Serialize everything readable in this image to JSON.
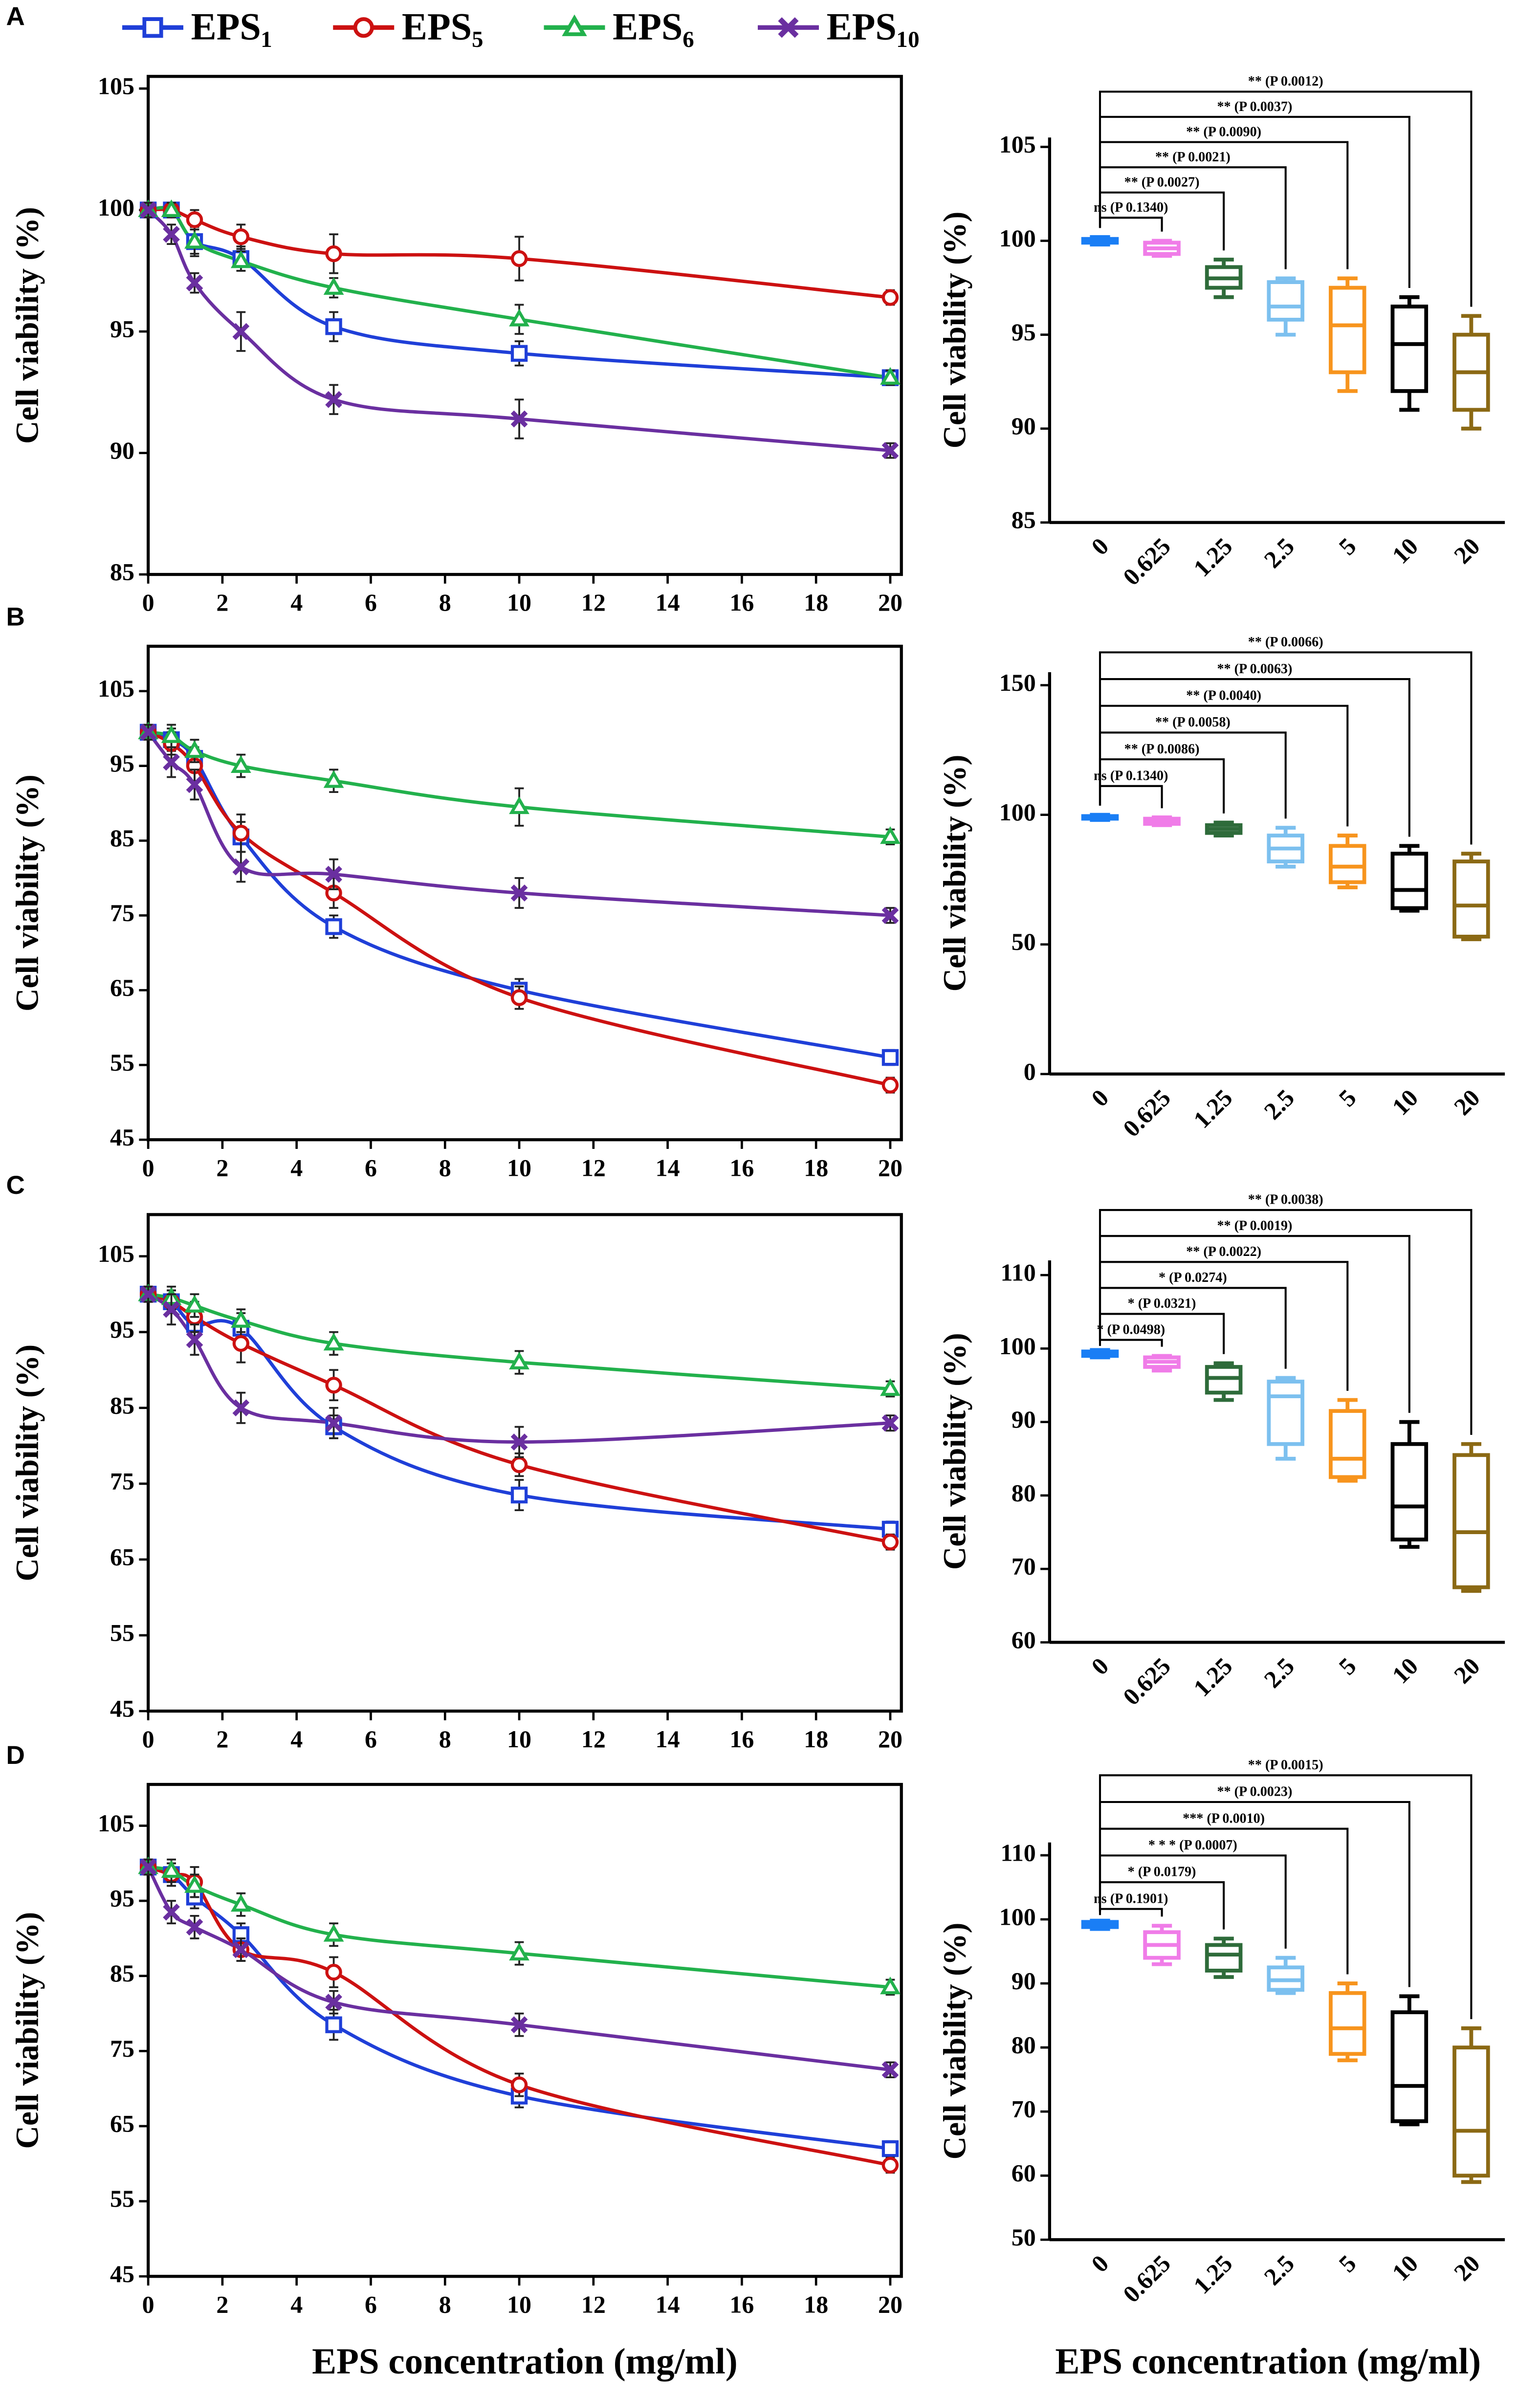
{
  "chart_data": [
    {
      "type": "line",
      "panel": "A",
      "ylabel": "Cell viability (%)",
      "x": [
        0,
        0.625,
        1.25,
        2.5,
        5,
        10,
        20
      ],
      "xlim": [
        0,
        20.3
      ],
      "xticks": [
        0,
        2,
        4,
        6,
        8,
        10,
        12,
        14,
        16,
        18,
        20
      ],
      "ylim": [
        85,
        105.5
      ],
      "yticks": [
        85,
        90,
        95,
        100,
        105
      ],
      "series": [
        {
          "name": "EPS₁",
          "color": "#1f3fd8",
          "marker": "square",
          "values": [
            100,
            100,
            98.7,
            98,
            95.2,
            94.1,
            93.1
          ],
          "errors": [
            0.3,
            0.3,
            0.6,
            0.5,
            0.6,
            0.5,
            0.3
          ]
        },
        {
          "name": "EPS₅",
          "color": "#cc1111",
          "marker": "circle",
          "values": [
            100,
            100,
            99.6,
            98.9,
            98.2,
            98,
            96.4
          ],
          "errors": [
            0.3,
            0.3,
            0.4,
            0.5,
            0.8,
            0.9,
            0.3
          ]
        },
        {
          "name": "EPS₆",
          "color": "#22b14c",
          "marker": "triangle",
          "values": [
            100,
            100,
            98.7,
            97.9,
            96.8,
            95.5,
            93.1
          ],
          "errors": [
            0.3,
            0.3,
            0.5,
            0.4,
            0.4,
            0.6,
            0.3
          ]
        },
        {
          "name": "EPS₁₀",
          "color": "#6a2fa0",
          "marker": "x",
          "values": [
            100,
            99,
            97,
            95,
            92.2,
            91.4,
            90.1
          ],
          "errors": [
            0.3,
            0.4,
            0.4,
            0.8,
            0.6,
            0.8,
            0.3
          ]
        }
      ]
    },
    {
      "type": "line",
      "panel": "B",
      "ylabel": "Cell viability (%)",
      "x": [
        0,
        0.625,
        1.25,
        2.5,
        5,
        10,
        20
      ],
      "xlim": [
        0,
        20.3
      ],
      "xticks": [
        0,
        2,
        4,
        6,
        8,
        10,
        12,
        14,
        16,
        18,
        20
      ],
      "ylim": [
        45,
        111
      ],
      "yticks": [
        45,
        55,
        65,
        75,
        85,
        95,
        105
      ],
      "series": [
        {
          "color": "#1f3fd8",
          "marker": "square",
          "values": [
            99.5,
            98.5,
            96,
            85.5,
            73.5,
            65,
            56
          ],
          "errors": [
            1,
            1.5,
            1.5,
            2,
            1.5,
            1.5,
            1
          ]
        },
        {
          "color": "#cc1111",
          "marker": "circle",
          "values": [
            99.5,
            98,
            95,
            86,
            78,
            64,
            52.3
          ],
          "errors": [
            1,
            1.5,
            2,
            2.5,
            2,
            1.5,
            1
          ]
        },
        {
          "color": "#22b14c",
          "marker": "triangle",
          "values": [
            99.5,
            99,
            97,
            95,
            93,
            89.5,
            85.5
          ],
          "errors": [
            1,
            1.5,
            1.5,
            1.5,
            1.5,
            2.5,
            1
          ]
        },
        {
          "color": "#6a2fa0",
          "marker": "x",
          "values": [
            99.5,
            95.5,
            92.5,
            81.5,
            80.5,
            78,
            75
          ],
          "errors": [
            1,
            2,
            2,
            2,
            2,
            2,
            1
          ]
        }
      ]
    },
    {
      "type": "line",
      "panel": "C",
      "ylabel": "Cell viability (%)",
      "x": [
        0,
        0.625,
        1.25,
        2.5,
        5,
        10,
        20
      ],
      "xlim": [
        0,
        20.3
      ],
      "xticks": [
        0,
        2,
        4,
        6,
        8,
        10,
        12,
        14,
        16,
        18,
        20
      ],
      "ylim": [
        45,
        110.5
      ],
      "yticks": [
        45,
        55,
        65,
        75,
        85,
        95,
        105
      ],
      "series": [
        {
          "color": "#1f3fd8",
          "marker": "square",
          "values": [
            100,
            99,
            96,
            95.5,
            82.5,
            73.5,
            69
          ],
          "errors": [
            1,
            1.5,
            1.5,
            2,
            1.5,
            2,
            1
          ]
        },
        {
          "color": "#cc1111",
          "marker": "circle",
          "values": [
            100,
            99,
            97,
            93.5,
            88,
            77.5,
            67.3
          ],
          "errors": [
            1,
            1.5,
            2,
            2.5,
            2,
            1.5,
            1
          ]
        },
        {
          "color": "#22b14c",
          "marker": "triangle",
          "values": [
            100,
            99.5,
            98.5,
            96.5,
            93.5,
            91,
            87.5
          ],
          "errors": [
            1,
            1.5,
            1.5,
            1.5,
            1.5,
            1.5,
            1
          ]
        },
        {
          "color": "#6a2fa0",
          "marker": "x",
          "values": [
            100,
            98,
            94,
            85,
            83,
            80.5,
            83
          ],
          "errors": [
            1,
            2,
            2,
            2,
            2,
            2,
            1
          ]
        }
      ]
    },
    {
      "type": "line",
      "panel": "D",
      "ylabel": "Cell viability (%)",
      "xlabel": "EPS concentration (mg/ml)",
      "x": [
        0,
        0.625,
        1.25,
        2.5,
        5,
        10,
        20
      ],
      "xlim": [
        0,
        20.3
      ],
      "xticks": [
        0,
        2,
        4,
        6,
        8,
        10,
        12,
        14,
        16,
        18,
        20
      ],
      "ylim": [
        45,
        110.5
      ],
      "yticks": [
        45,
        55,
        65,
        75,
        85,
        95,
        105
      ],
      "series": [
        {
          "color": "#1f3fd8",
          "marker": "square",
          "values": [
            99.5,
            98.5,
            95.5,
            90.5,
            78.5,
            69,
            62
          ],
          "errors": [
            1,
            1.5,
            1.5,
            1.5,
            2,
            1.5,
            1
          ]
        },
        {
          "color": "#cc1111",
          "marker": "circle",
          "values": [
            99.5,
            98.5,
            97.5,
            88.5,
            85.5,
            70.5,
            59.8
          ],
          "errors": [
            1,
            1.5,
            2,
            1.5,
            2,
            1.5,
            1
          ]
        },
        {
          "color": "#22b14c",
          "marker": "triangle",
          "values": [
            99.5,
            99,
            97,
            94.5,
            90.5,
            88,
            83.5
          ],
          "errors": [
            1,
            1.5,
            1.5,
            1.5,
            1.5,
            1.5,
            1
          ]
        },
        {
          "color": "#6a2fa0",
          "marker": "x",
          "values": [
            99.5,
            93.5,
            91.5,
            88.5,
            81.5,
            78.5,
            72.5
          ],
          "errors": [
            1,
            1.5,
            1.5,
            1.5,
            1.5,
            1.5,
            1
          ]
        }
      ]
    },
    {
      "type": "box",
      "ylabel": "Cell viability (%)",
      "categories": [
        "0",
        "0.625",
        "1.25",
        "2.5",
        "5",
        "10",
        "20"
      ],
      "colors": [
        "#1a7ef5",
        "#f07ce8",
        "#2e6b3a",
        "#7cc0ef",
        "#f7941d",
        "#000000",
        "#8b6914"
      ],
      "ylim": [
        85,
        105.5
      ],
      "yticks": [
        85,
        90,
        95,
        100,
        105
      ],
      "boxes": [
        [
          99.8,
          99.9,
          100,
          100.1,
          100.2
        ],
        [
          99.2,
          99.3,
          99.6,
          99.9,
          100
        ],
        [
          97,
          97.5,
          98,
          98.6,
          99
        ],
        [
          95,
          95.8,
          96.5,
          97.8,
          98
        ],
        [
          92,
          93,
          95.5,
          97.5,
          98
        ],
        [
          91,
          92,
          94.5,
          96.5,
          97
        ],
        [
          90,
          91,
          93,
          95,
          96
        ]
      ],
      "annotations": [
        "ns (P 0.1340)",
        "** (P 0.0027)",
        "** (P 0.0021)",
        "** (P 0.0090)",
        "** (P 0.0037)",
        "** (P 0.0012)"
      ]
    },
    {
      "type": "box",
      "ylabel": "Cell viability (%)",
      "categories": [
        "0",
        "0.625",
        "1.25",
        "2.5",
        "5",
        "10",
        "20"
      ],
      "colors": [
        "#1a7ef5",
        "#f07ce8",
        "#2e6b3a",
        "#7cc0ef",
        "#f7941d",
        "#000000",
        "#8b6914"
      ],
      "ylim": [
        0,
        155
      ],
      "yticks": [
        0,
        50,
        100,
        150
      ],
      "boxes": [
        [
          98,
          98.5,
          99,
          99.5,
          100
        ],
        [
          96,
          96.5,
          97.5,
          98.5,
          99
        ],
        [
          92,
          93,
          94.5,
          96,
          97
        ],
        [
          80,
          82,
          87,
          92,
          95
        ],
        [
          72,
          74,
          80,
          88,
          92
        ],
        [
          63,
          64,
          71,
          85,
          88
        ],
        [
          52,
          53,
          65,
          82,
          85
        ]
      ],
      "annotations": [
        "ns (P 0.1340)",
        "** (P 0.0086)",
        "** (P 0.0058)",
        "** (P 0.0040)",
        "** (P 0.0063)",
        "** (P 0.0066)"
      ]
    },
    {
      "type": "box",
      "ylabel": "Cell viability (%)",
      "categories": [
        "0",
        "0.625",
        "1.25",
        "2.5",
        "5",
        "10",
        "20"
      ],
      "colors": [
        "#1a7ef5",
        "#f07ce8",
        "#2e6b3a",
        "#7cc0ef",
        "#f7941d",
        "#000000",
        "#8b6914"
      ],
      "ylim": [
        60,
        112
      ],
      "yticks": [
        60,
        70,
        80,
        90,
        100,
        110
      ],
      "boxes": [
        [
          98.8,
          99,
          99.3,
          99.6,
          99.8
        ],
        [
          97,
          97.5,
          98.2,
          98.8,
          99
        ],
        [
          93,
          94,
          96,
          97.5,
          98
        ],
        [
          85,
          87,
          93.5,
          95.5,
          96
        ],
        [
          82,
          82.5,
          85,
          91.5,
          93
        ],
        [
          73,
          74,
          78.5,
          87,
          90
        ],
        [
          67,
          67.5,
          75,
          85.5,
          87
        ]
      ],
      "annotations": [
        "* (P 0.0498)",
        "* (P 0.0321)",
        "* (P 0.0274)",
        "** (P 0.0022)",
        "** (P 0.0019)",
        "** (P 0.0038)"
      ]
    },
    {
      "type": "box",
      "ylabel": "Cell viability (%)",
      "xlabel": "EPS concentration (mg/ml)",
      "categories": [
        "0",
        "0.625",
        "1.25",
        "2.5",
        "5",
        "10",
        "20"
      ],
      "colors": [
        "#1a7ef5",
        "#f07ce8",
        "#2e6b3a",
        "#7cc0ef",
        "#f7941d",
        "#000000",
        "#8b6914"
      ],
      "ylim": [
        50,
        112
      ],
      "yticks": [
        50,
        60,
        70,
        80,
        90,
        100,
        110
      ],
      "boxes": [
        [
          98.5,
          98.8,
          99.2,
          99.6,
          99.8
        ],
        [
          93,
          94,
          96,
          98,
          99
        ],
        [
          91,
          92,
          94.5,
          96,
          97
        ],
        [
          88.5,
          89,
          90.5,
          92.5,
          94
        ],
        [
          78,
          79,
          83,
          88.5,
          90
        ],
        [
          68,
          68.5,
          74,
          85.5,
          88
        ],
        [
          59,
          60,
          67,
          80,
          83
        ]
      ],
      "annotations": [
        "ns (P 0.1901)",
        "* (P 0.0179)",
        "* * * (P 0.0007)",
        "*** (P 0.0010)",
        "** (P 0.0023)",
        "** (P 0.0015)"
      ]
    }
  ]
}
